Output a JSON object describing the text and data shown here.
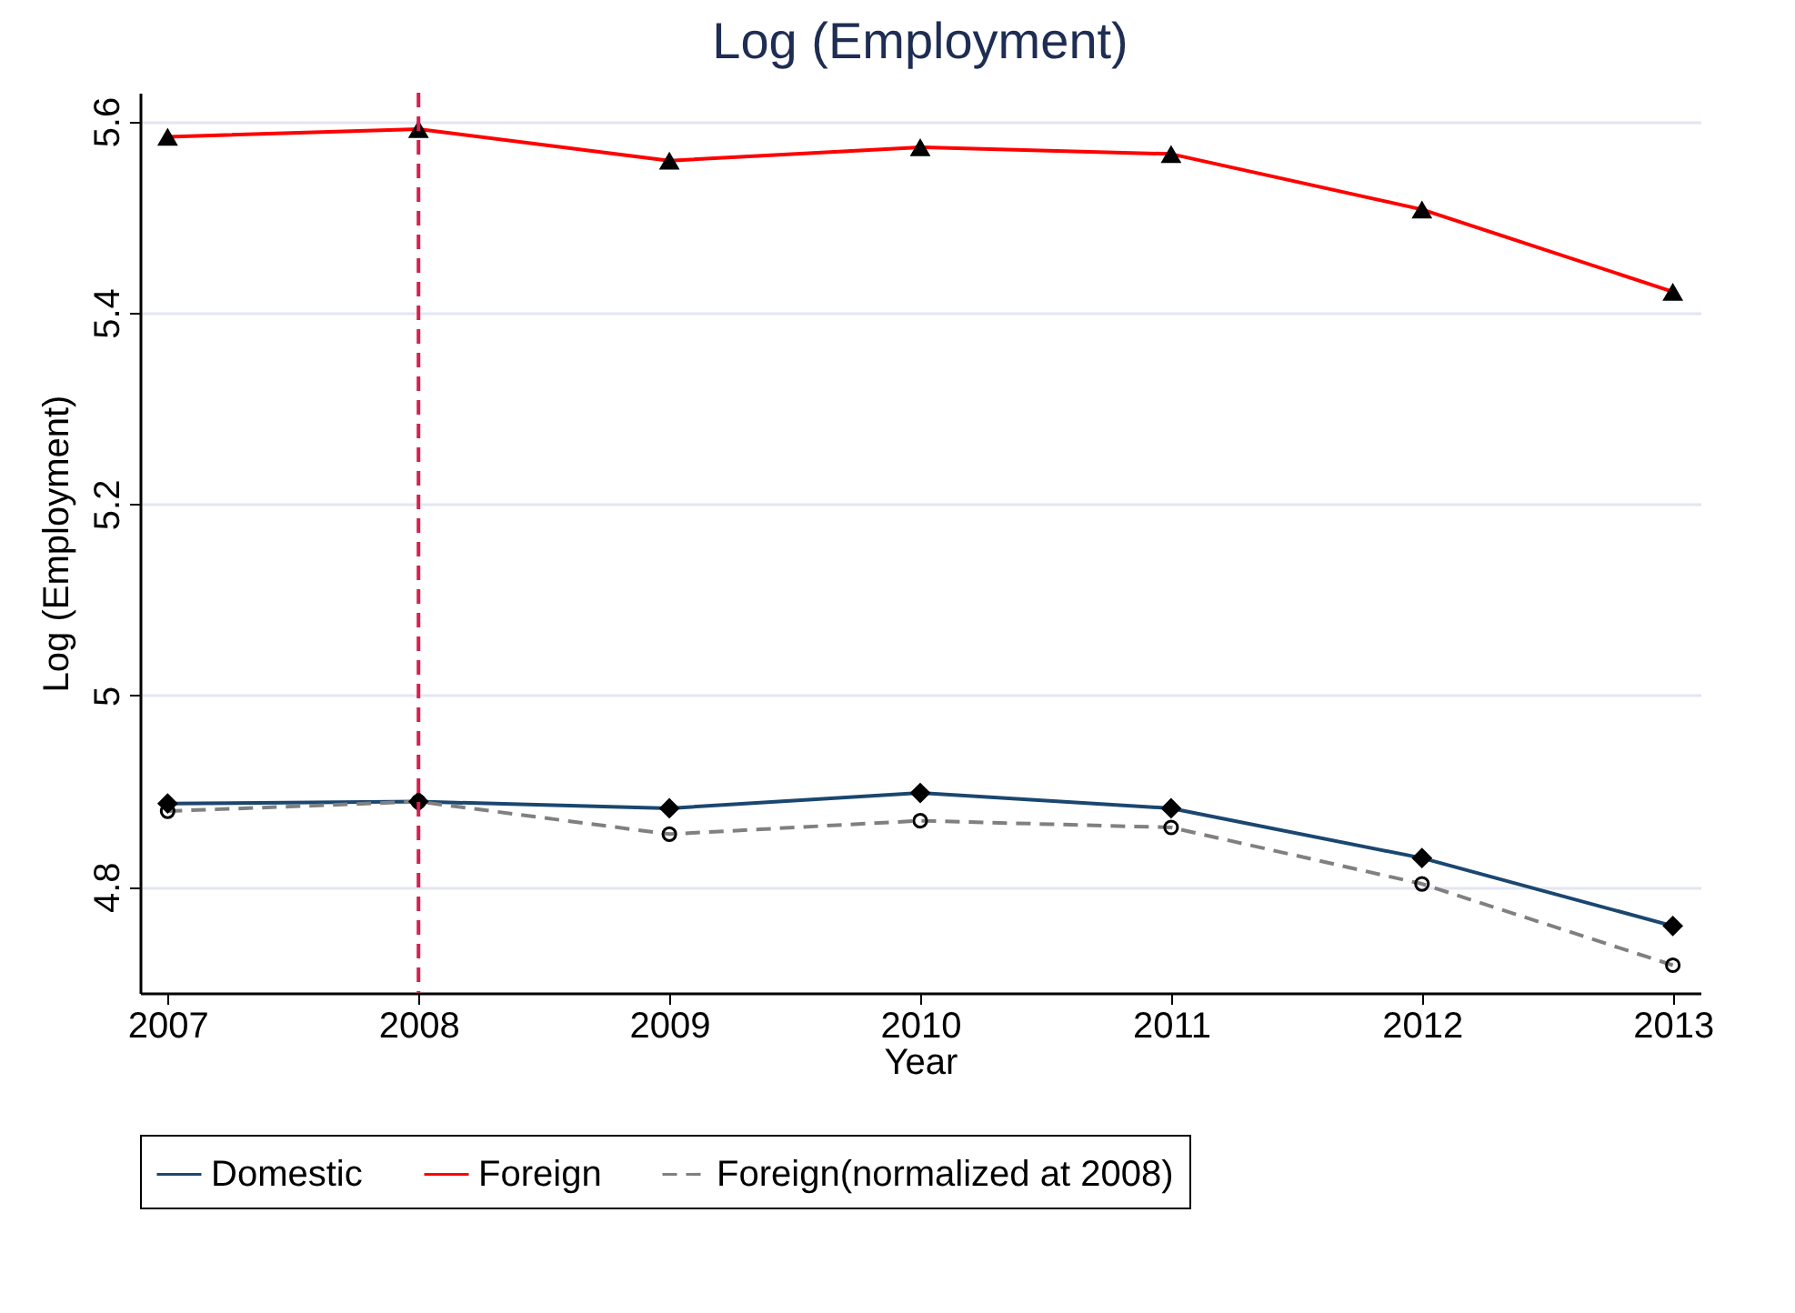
{
  "chart_data": {
    "type": "line",
    "title": "Log (Employment)",
    "xlabel": "Year",
    "ylabel": "Log (Employment)",
    "x": [
      2007,
      2008,
      2009,
      2010,
      2011,
      2012,
      2013
    ],
    "series": [
      {
        "name": "Domestic",
        "color": "#1a476f",
        "marker": "diamond",
        "line_style": "solid",
        "values": [
          4.887,
          4.889,
          4.882,
          4.898,
          4.882,
          4.83,
          4.759
        ]
      },
      {
        "name": "Foreign",
        "color": "#ff0000",
        "marker": "triangle",
        "line_style": "solid",
        "values": [
          5.584,
          5.592,
          5.559,
          5.573,
          5.566,
          5.508,
          5.422
        ]
      },
      {
        "name": "Foreign(normalized at 2008)",
        "color": "#808080",
        "marker": "circle",
        "line_style": "dashed",
        "values": [
          4.879,
          4.889,
          4.855,
          4.869,
          4.862,
          4.803,
          4.718
        ]
      }
    ],
    "xlim": [
      2006.89,
      2013.11
    ],
    "xticks": [
      2007,
      2008,
      2009,
      2010,
      2011,
      2012,
      2013
    ],
    "ylim": [
      4.689,
      5.63
    ],
    "yticks": [
      {
        "value": 4.8,
        "label": "4.8"
      },
      {
        "value": 5,
        "label": "5"
      },
      {
        "value": 5.2,
        "label": "5.2"
      },
      {
        "value": 5.4,
        "label": "5.4"
      },
      {
        "value": 5.6,
        "label": "5.6"
      }
    ],
    "ref_lines": [
      {
        "axis": "x",
        "value": 2008,
        "label": null,
        "color": "#d6204e",
        "line_style": "dashed"
      }
    ],
    "grid": "y",
    "legend": "bottom"
  }
}
